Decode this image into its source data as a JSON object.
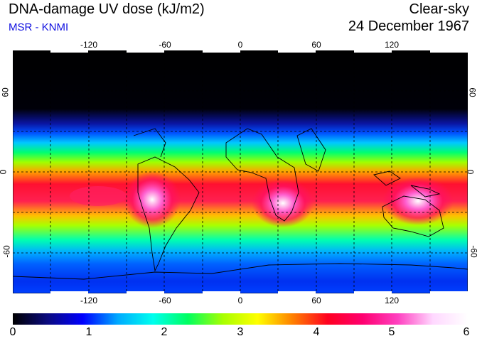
{
  "header": {
    "title": "DNA-damage UV dose (kJ/m2)",
    "source": "MSR - KNMI",
    "condition": "Clear-sky",
    "date": "24 December 1967"
  },
  "map": {
    "lon_range": [
      -180,
      180
    ],
    "lat_range": [
      -90,
      90
    ],
    "lon_ticks": [
      "-120",
      "-60",
      "0",
      "60",
      "120"
    ],
    "lat_ticks": [
      "60",
      "0",
      "-60"
    ],
    "grid": "dashed"
  },
  "colorbar": {
    "min": 0,
    "max": 6,
    "labels": [
      "0",
      "1",
      "2",
      "3",
      "4",
      "5",
      "6"
    ],
    "colors": [
      "#000000",
      "#0a0a80",
      "#0000ff",
      "#00aaff",
      "#00ffee",
      "#00ff60",
      "#a8ff00",
      "#ffff00",
      "#ff8000",
      "#ff0020",
      "#ff0070",
      "#ff40c0",
      "#ffd8ff",
      "#ffffff"
    ]
  }
}
